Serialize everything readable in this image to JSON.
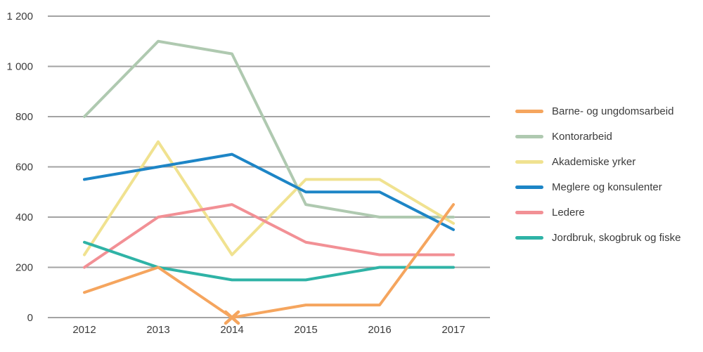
{
  "chart_data": {
    "type": "line",
    "title": "",
    "x_categories": [
      "2012",
      "2013",
      "2014",
      "2015",
      "2016",
      "2017"
    ],
    "series": [
      {
        "name": "Barne- og ungdomsarbeid",
        "color": "#F5A55E",
        "values": [
          100,
          200,
          0,
          50,
          50,
          450
        ],
        "marker": {
          "x": "2014",
          "value": 0,
          "shape": "x"
        }
      },
      {
        "name": "Kontorarbeid",
        "color": "#AFC9B0",
        "values": [
          800,
          1100,
          1050,
          450,
          400,
          400
        ]
      },
      {
        "name": "Akademiske yrker",
        "color": "#F0E290",
        "values": [
          250,
          700,
          250,
          550,
          550,
          375
        ]
      },
      {
        "name": "Meglere og konsulenter",
        "color": "#1D85C6",
        "values": [
          550,
          600,
          650,
          500,
          500,
          350
        ]
      },
      {
        "name": "Ledere",
        "color": "#F29095",
        "values": [
          200,
          400,
          450,
          300,
          250,
          250
        ]
      },
      {
        "name": "Jordbruk, skogbruk og fiske",
        "color": "#2FB3A6",
        "values": [
          300,
          200,
          150,
          150,
          200,
          200
        ]
      }
    ],
    "ylim": [
      0,
      1200
    ],
    "ytick_step": 200,
    "ytick_labels": [
      "0",
      "200",
      "400",
      "600",
      "800",
      "1 000",
      "1 200"
    ],
    "grid": true,
    "legend_position": "right"
  },
  "colors": {
    "grid": "#A3A3A3",
    "axis_text": "#3B3B3B",
    "background": "#FFFFFF"
  }
}
